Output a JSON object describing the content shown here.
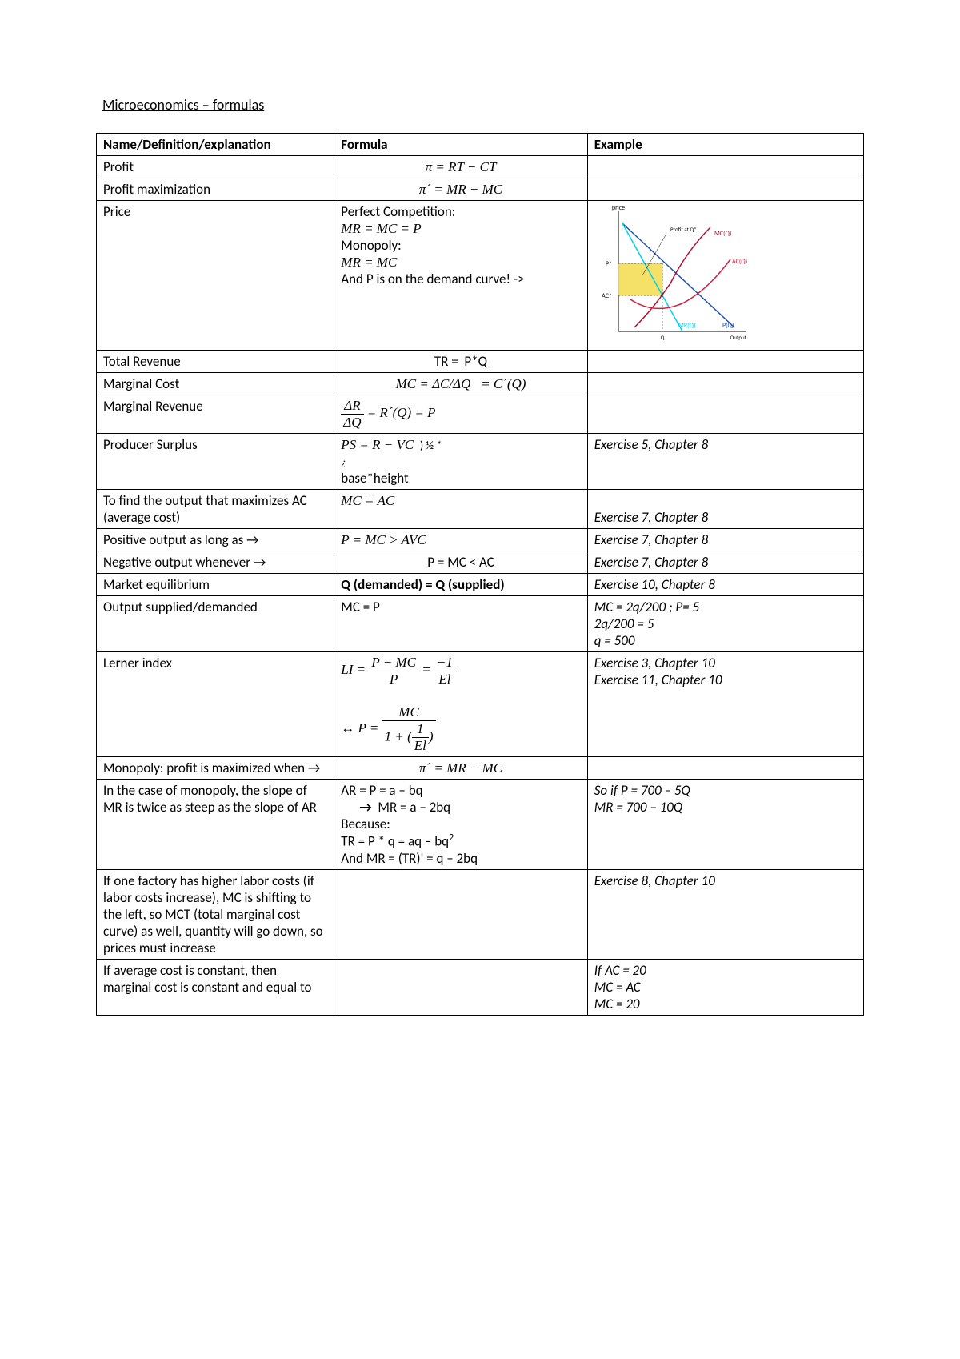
{
  "title": "Microeconomics – formulas",
  "headers": {
    "col1": "Name/Definition/explanation",
    "col2": "Formula",
    "col3": "Example"
  },
  "rows": [
    {
      "name": "Profit",
      "formula_html": "<span class='formula'>π = RT − CT</span>",
      "formula_center": true,
      "example": ""
    },
    {
      "name": "Profit maximization",
      "formula_html": "<span class='formula'>π´ = MR − MC</span>",
      "formula_center": true,
      "example": ""
    },
    {
      "name": "Price",
      "formula_html": "Perfect Competition:<br><span class='formula'>MR = MC = P</span><br>Monopoly:<br><span class='formula'>MR = MC</span><br>And P is on the demand curve! -&gt;",
      "formula_center": false,
      "example_graph": true
    },
    {
      "name": "Total Revenue",
      "formula_html": "TR =&nbsp;&nbsp;P*Q",
      "formula_center": true,
      "example": ""
    },
    {
      "name": "Marginal Cost",
      "formula_html": "<span class='formula'>MC = ΔC/ΔQ&nbsp;&nbsp;&nbsp;= C´(Q)</span>",
      "formula_center": true,
      "example": ""
    },
    {
      "name": "Marginal Revenue",
      "formula_html": "<span class='formula'><span class='frac'><span class='num'>ΔR</span><span class='den'>ΔQ</span></span> = R´(Q) = P</span>",
      "formula_center": false,
      "example": ""
    },
    {
      "name": "Producer Surplus",
      "formula_html": "<span class='formula'>PS = R − VC</span>&nbsp;&nbsp;<span style='font-size:0.85em'>) ½ *</span><br><span style='font-style:italic;font-size:0.8em'>¿</span><br>base*height",
      "formula_center": false,
      "example_html": "<span class='italic'>Exercise 5, Chapter 8</span>"
    },
    {
      "name": "To find the output that maximizes AC (average cost)",
      "formula_html": "<span class='formula'>MC = AC</span>",
      "formula_center": false,
      "example_html": "<br><span class='italic'>Exercise 7, Chapter 8</span>"
    },
    {
      "name": "Positive output as long as →",
      "formula_html": "<span class='formula'>P = MC &gt; AVC</span>",
      "formula_center": false,
      "example_html": "<span class='italic'>Exercise 7, Chapter 8</span>"
    },
    {
      "name": "Negative output whenever →",
      "formula_html": "P = MC &lt; AC",
      "formula_center": true,
      "example_html": "<span class='italic'>Exercise 7, Chapter 8</span>"
    },
    {
      "name": "Market equilibrium",
      "formula_html": "<b>Q (demanded) = Q (supplied)</b>",
      "formula_center": false,
      "example_html": "<span class='italic'>Exercise 10, Chapter 8</span>"
    },
    {
      "name": "Output supplied/demanded",
      "formula_html": "MC = P",
      "formula_center": false,
      "example_html": "<span class='italic'>MC = 2q/200 ; P= 5<br>2q/200 = 5<br>q = 500</span>"
    },
    {
      "name": "Lerner index",
      "formula_html": "<span class='formula'>LI = <span class='frac'><span class='num'>P − MC</span><span class='den'>P</span></span> = <span class='frac'><span class='num'>−1</span><span class='den'>El</span></span><br><br>↔ P = <span class='frac'><span class='num'>MC</span><span class='den'>1 + (<span class='frac'><span class='num'>1</span><span class='den'>El</span></span>)</span></span></span>",
      "formula_center": false,
      "example_html": "<span class='italic'>Exercise 3, Chapter 10<br>Exercise 11, Chapter 10</span>"
    },
    {
      "name": "Monopoly: profit is maximized when →",
      "formula_html": "<span class='formula'>π´ = MR − MC</span>",
      "formula_center": true,
      "example": ""
    },
    {
      "name": "In the case of monopoly, the slope of MR is twice as steep as the slope of AR",
      "formula_html": "AR = P = a – bq<br>&nbsp;&nbsp;&nbsp;&nbsp;&nbsp;&nbsp;<span class='arrow'>→</span>&nbsp;&nbsp;MR = a – 2bq<br>Because:<br>TR = P * q = aq – bq<span class='sup'>2</span><br>And MR = (TR)' = q – 2bq",
      "formula_center": false,
      "example_html": "<span class='italic'>So if P = 700 – 5Q<br>MR = 700 – 10Q</span>"
    },
    {
      "name": "If one factory has higher labor costs (if labor costs increase), MC is shifting to the left, so MCT (total marginal cost curve) as well, quantity will go down, so prices must increase",
      "formula_html": "",
      "formula_center": false,
      "example_html": "<span class='italic'>Exercise 8, Chapter 10</span>"
    },
    {
      "name": "If average cost is constant, then marginal cost is constant and equal to",
      "formula_html": "",
      "formula_center": false,
      "example_html": "<span class='italic'>If AC = 20<br>MC = AC<br>MC = 20</span>"
    }
  ],
  "graph": {
    "title": "price",
    "profit_label": "Profit at Q*",
    "mc_label": "MC(Q)",
    "ac_label": "AC(Q)",
    "mr_label": "MR(Q)",
    "p_label": "P(Q)",
    "output_label": "Output",
    "p_star": "P*",
    "ac_star": "AC*",
    "q_star": "Q",
    "colors": {
      "axis": "#000000",
      "demand": "#2050b0",
      "mr": "#00d0f0",
      "mc": "#b01030",
      "ac": "#d02040",
      "profit_fill": "#f5e068",
      "profit_stroke": "#b0a030"
    }
  }
}
